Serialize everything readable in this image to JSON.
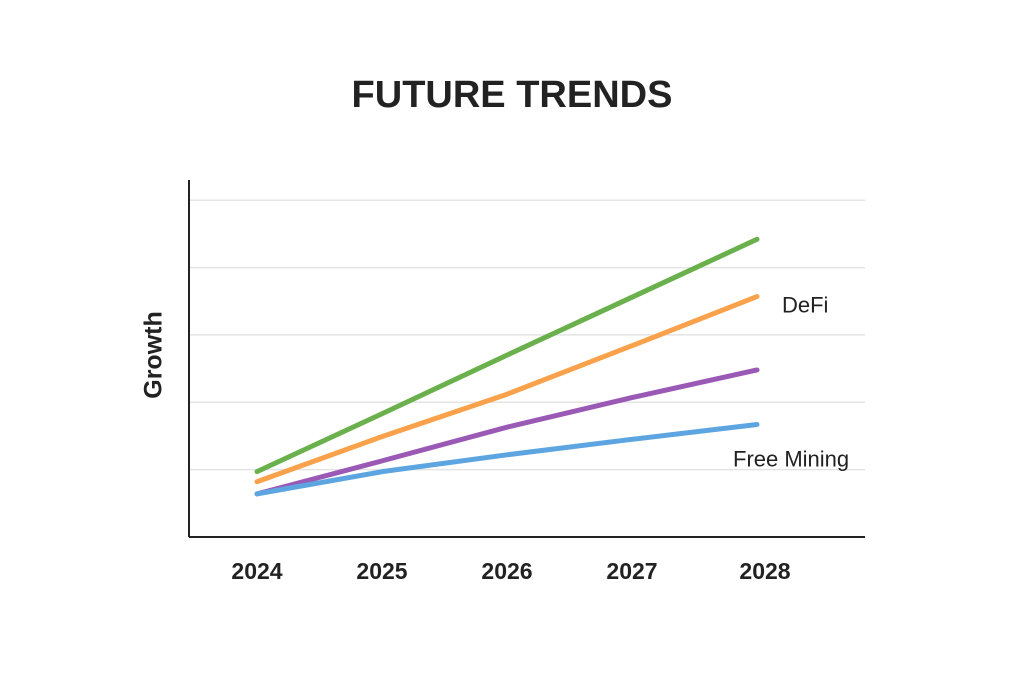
{
  "chart_data": {
    "type": "line",
    "title": "FUTURE TRENDS",
    "y_label": "Growth",
    "categories": [
      "2024",
      "2025",
      "2026",
      "2027",
      "2028"
    ],
    "series": [
      {
        "color": "#6ab04c",
        "values": [
          0.97,
          1.83,
          2.7,
          3.56,
          4.42
        ]
      },
      {
        "name": "DeFi",
        "color": "#f9a24b",
        "values": [
          0.82,
          1.49,
          2.12,
          2.84,
          3.57
        ]
      },
      {
        "color": "#9b59b6",
        "values": [
          0.64,
          1.13,
          1.63,
          2.07,
          2.48
        ]
      },
      {
        "name": "Free Mining",
        "color": "#5da5e0",
        "values": [
          0.64,
          0.97,
          1.22,
          1.45,
          1.67
        ]
      }
    ],
    "ylim": [
      0,
      5.3
    ],
    "yticks": [
      1,
      2,
      3,
      4,
      5
    ],
    "grid": true
  }
}
